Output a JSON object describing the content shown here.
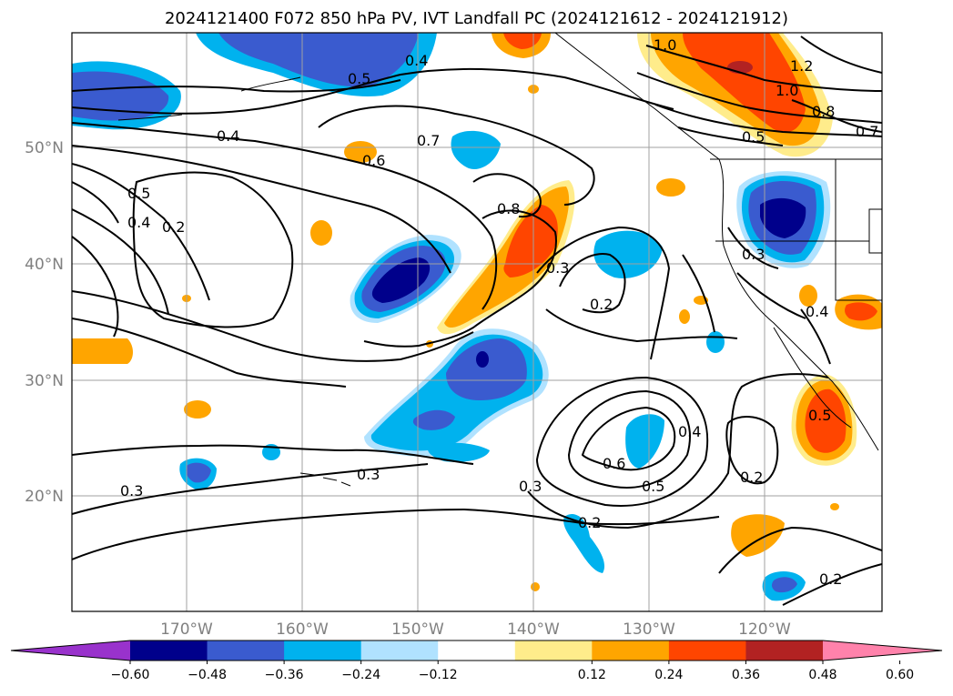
{
  "title": "2024121400 F072 850 hPa PV, IVT Landfall PC (2024121612 - 2024121912)",
  "lat_labels": [
    "50°N",
    "40°N",
    "30°N",
    "20°N"
  ],
  "lon_labels": [
    "170°W",
    "160°W",
    "150°W",
    "140°W",
    "130°W",
    "120°W"
  ],
  "colorbar": {
    "ticks": [
      "−0.60",
      "−0.48",
      "−0.36",
      "−0.24",
      "−0.12",
      "0.12",
      "0.24",
      "0.36",
      "0.48",
      "0.60"
    ],
    "colors": [
      "#9932CC",
      "#00008B",
      "#3A5BCF",
      "#00B2EE",
      "#B0E2FF",
      "#FFFFFF",
      "#FFEC8B",
      "#FFA500",
      "#FF4500",
      "#B22222",
      "#FF82AB"
    ]
  },
  "contour_labels": [
    "0.4",
    "0.5",
    "0.4",
    "0.7",
    "0.6",
    "0.8",
    "1.0",
    "1.2",
    "1.0",
    "0.8",
    "0.5",
    "0.7",
    "0.5",
    "0.4",
    "0.2",
    "0.3",
    "0.2",
    "0.3",
    "0.4",
    "0.5",
    "0.6",
    "0.2",
    "0.5",
    "0.4",
    "0.3",
    "0.3",
    "0.3",
    "0.2",
    "0.2"
  ]
}
